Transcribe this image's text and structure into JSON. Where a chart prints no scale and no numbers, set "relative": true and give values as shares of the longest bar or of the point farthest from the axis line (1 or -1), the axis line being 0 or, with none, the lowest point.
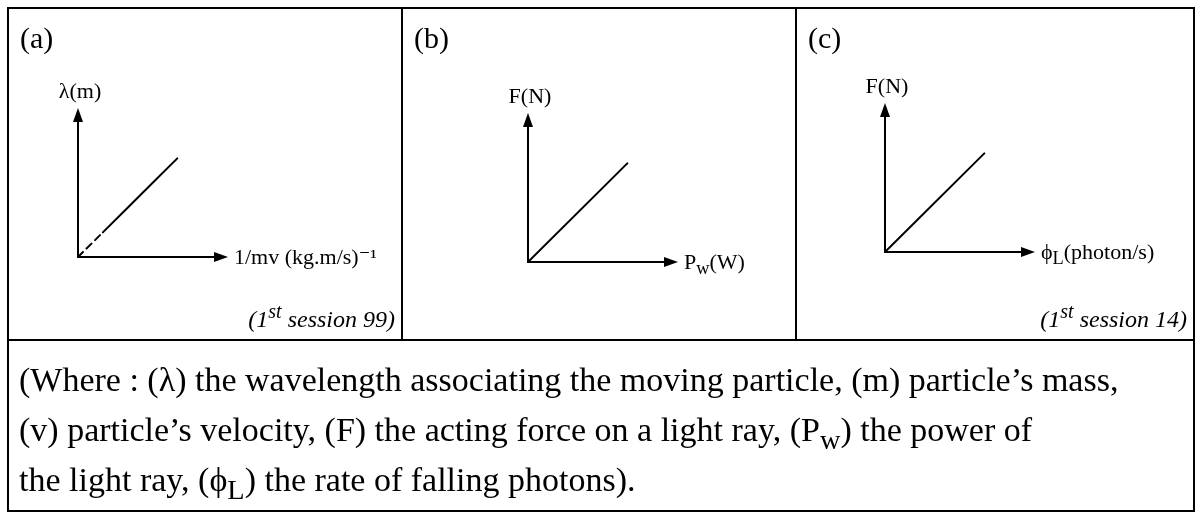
{
  "chart_data": [
    {
      "type": "line",
      "title": "(a)",
      "xlabel": "1/mv (kg.m/s)⁻¹",
      "ylabel": "λ(m)",
      "relative": true,
      "marker": "none",
      "annotations": [
        "(1$^{st}$ session 99)"
      ],
      "categories": [
        null,
        null,
        null,
        null,
        null
      ],
      "series": [
        {
          "color": "#000000",
          "line_style": "dashed",
          "values": [
            0,
            0.25,
            null,
            null,
            null
          ]
        },
        {
          "color": "#000000",
          "line_style": "solid",
          "values": [
            null,
            0.25,
            0.5,
            0.75,
            1
          ]
        }
      ]
    },
    {
      "type": "line",
      "title": "(b)",
      "xlabel": "P$_{w}$(W)",
      "ylabel": "F(N)",
      "relative": true,
      "marker": "none",
      "categories": [
        null,
        null
      ],
      "series": [
        {
          "color": "#000000",
          "line_style": "solid",
          "values": [
            0,
            1
          ]
        }
      ]
    },
    {
      "type": "line",
      "title": "(c)",
      "xlabel": "ϕ$_{L}$(photon/s)",
      "ylabel": "F(N)",
      "relative": true,
      "marker": "none",
      "annotations": [
        "(1$^{st}$ session 14)"
      ],
      "categories": [
        null,
        null
      ],
      "series": [
        {
          "color": "#000000",
          "line_style": "solid",
          "values": [
            0,
            1
          ]
        }
      ]
    },
    {
      "type": "other",
      "annotations": [
        "(Where : (λ) the wavelength associating the moving particle, (m) particle’s mass,",
        "(v) particle’s velocity, (F) the acting force on a light ray, (P$_{w}$) the power of",
        "the light ray, (ϕ$_{L}$) the rate of falling photons)."
      ]
    }
  ]
}
